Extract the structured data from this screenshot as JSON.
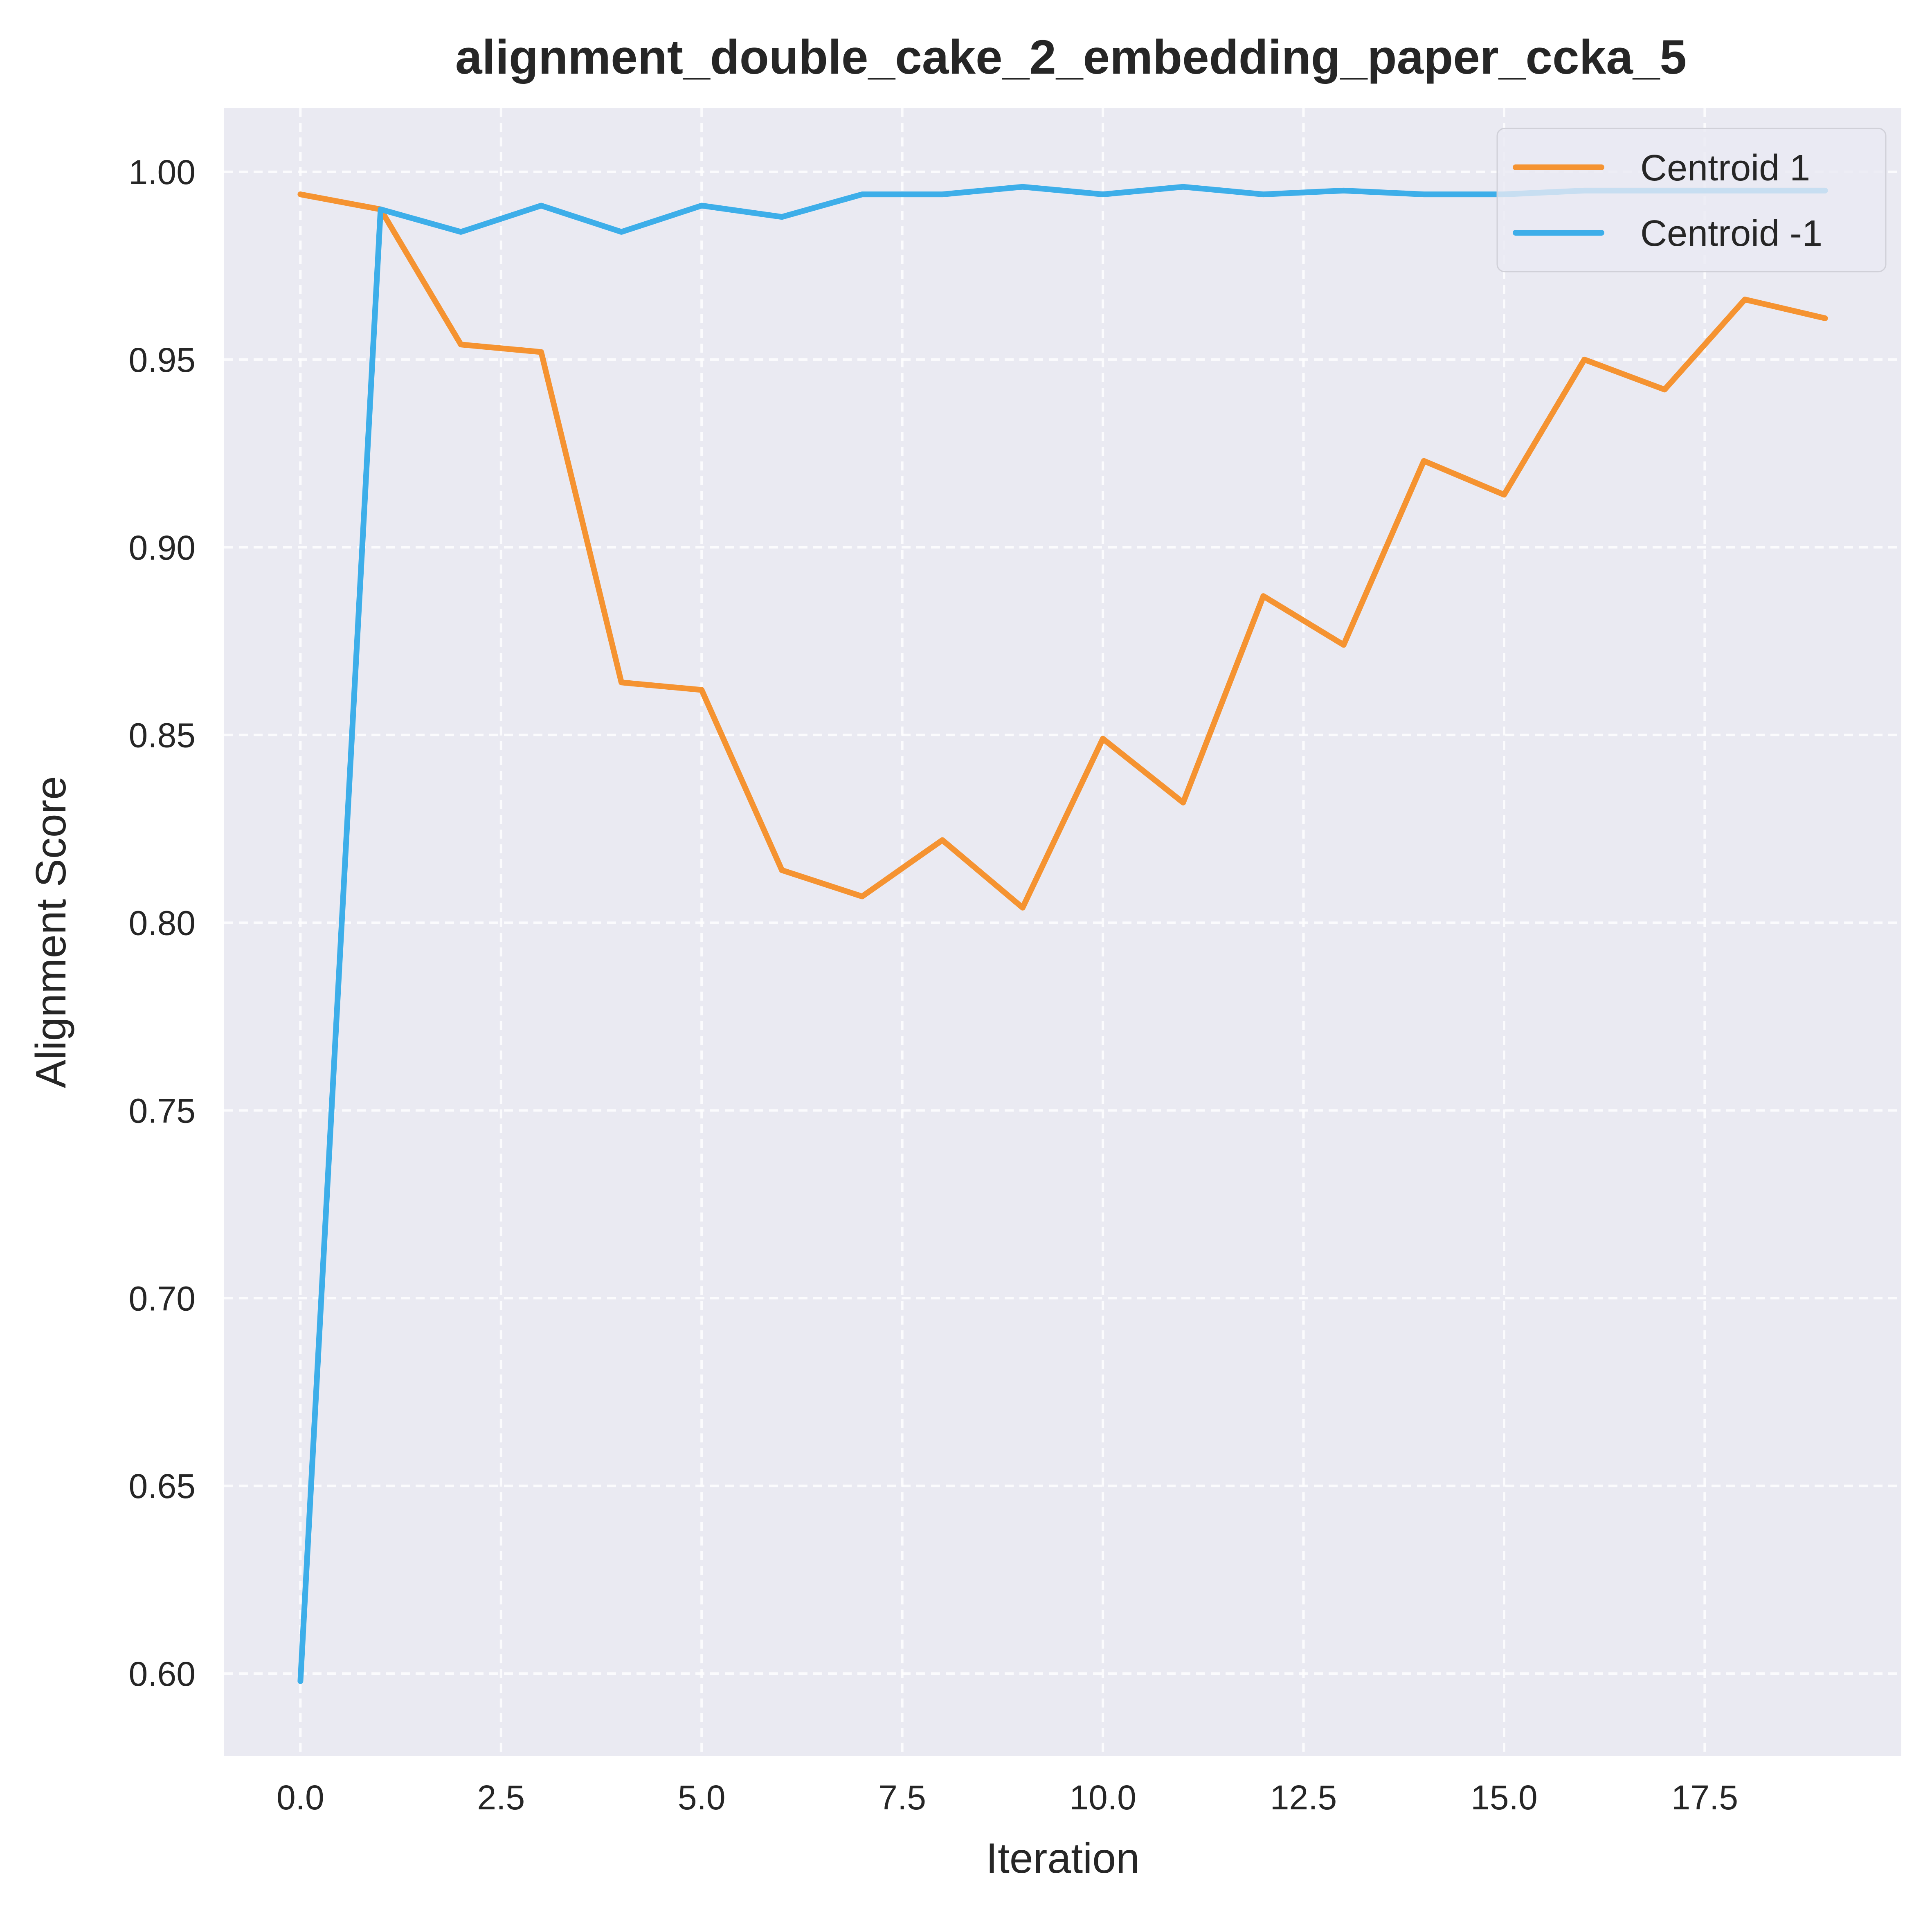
{
  "chart_data": {
    "type": "line",
    "title": "alignment_double_cake_2_embedding_paper_ccka_5",
    "xlabel": "Iteration",
    "ylabel": "Alignment Score",
    "x": [
      0,
      1,
      2,
      3,
      4,
      5,
      6,
      7,
      8,
      9,
      10,
      11,
      12,
      13,
      14,
      15,
      16,
      17,
      18,
      19
    ],
    "xlim": [
      -0.95,
      19.95
    ],
    "ylim": [
      0.578,
      1.017
    ],
    "xticks": [
      0.0,
      2.5,
      5.0,
      7.5,
      10.0,
      12.5,
      15.0,
      17.5
    ],
    "xtick_labels": [
      "0.0",
      "2.5",
      "5.0",
      "7.5",
      "10.0",
      "12.5",
      "15.0",
      "17.5"
    ],
    "yticks": [
      0.6,
      0.65,
      0.7,
      0.75,
      0.8,
      0.85,
      0.9,
      0.95,
      1.0
    ],
    "ytick_labels": [
      "0.60",
      "0.65",
      "0.70",
      "0.75",
      "0.80",
      "0.85",
      "0.90",
      "0.95",
      "1.00"
    ],
    "grid": true,
    "grid_style": "dashed",
    "legend_position": "top-right",
    "background_color": "#EAEAF2",
    "series": [
      {
        "name": "Centroid 1",
        "color": "#F59331",
        "values": [
          0.994,
          0.99,
          0.954,
          0.952,
          0.864,
          0.862,
          0.814,
          0.807,
          0.822,
          0.804,
          0.849,
          0.832,
          0.887,
          0.874,
          0.923,
          0.914,
          0.95,
          0.942,
          0.966,
          0.961
        ]
      },
      {
        "name": "Centroid -1",
        "color": "#3DAEE9",
        "values": [
          0.598,
          0.99,
          0.984,
          0.991,
          0.984,
          0.991,
          0.988,
          0.994,
          0.994,
          0.996,
          0.994,
          0.996,
          0.994,
          0.995,
          0.994,
          0.994,
          0.995,
          0.995,
          0.995,
          0.995
        ]
      }
    ]
  }
}
